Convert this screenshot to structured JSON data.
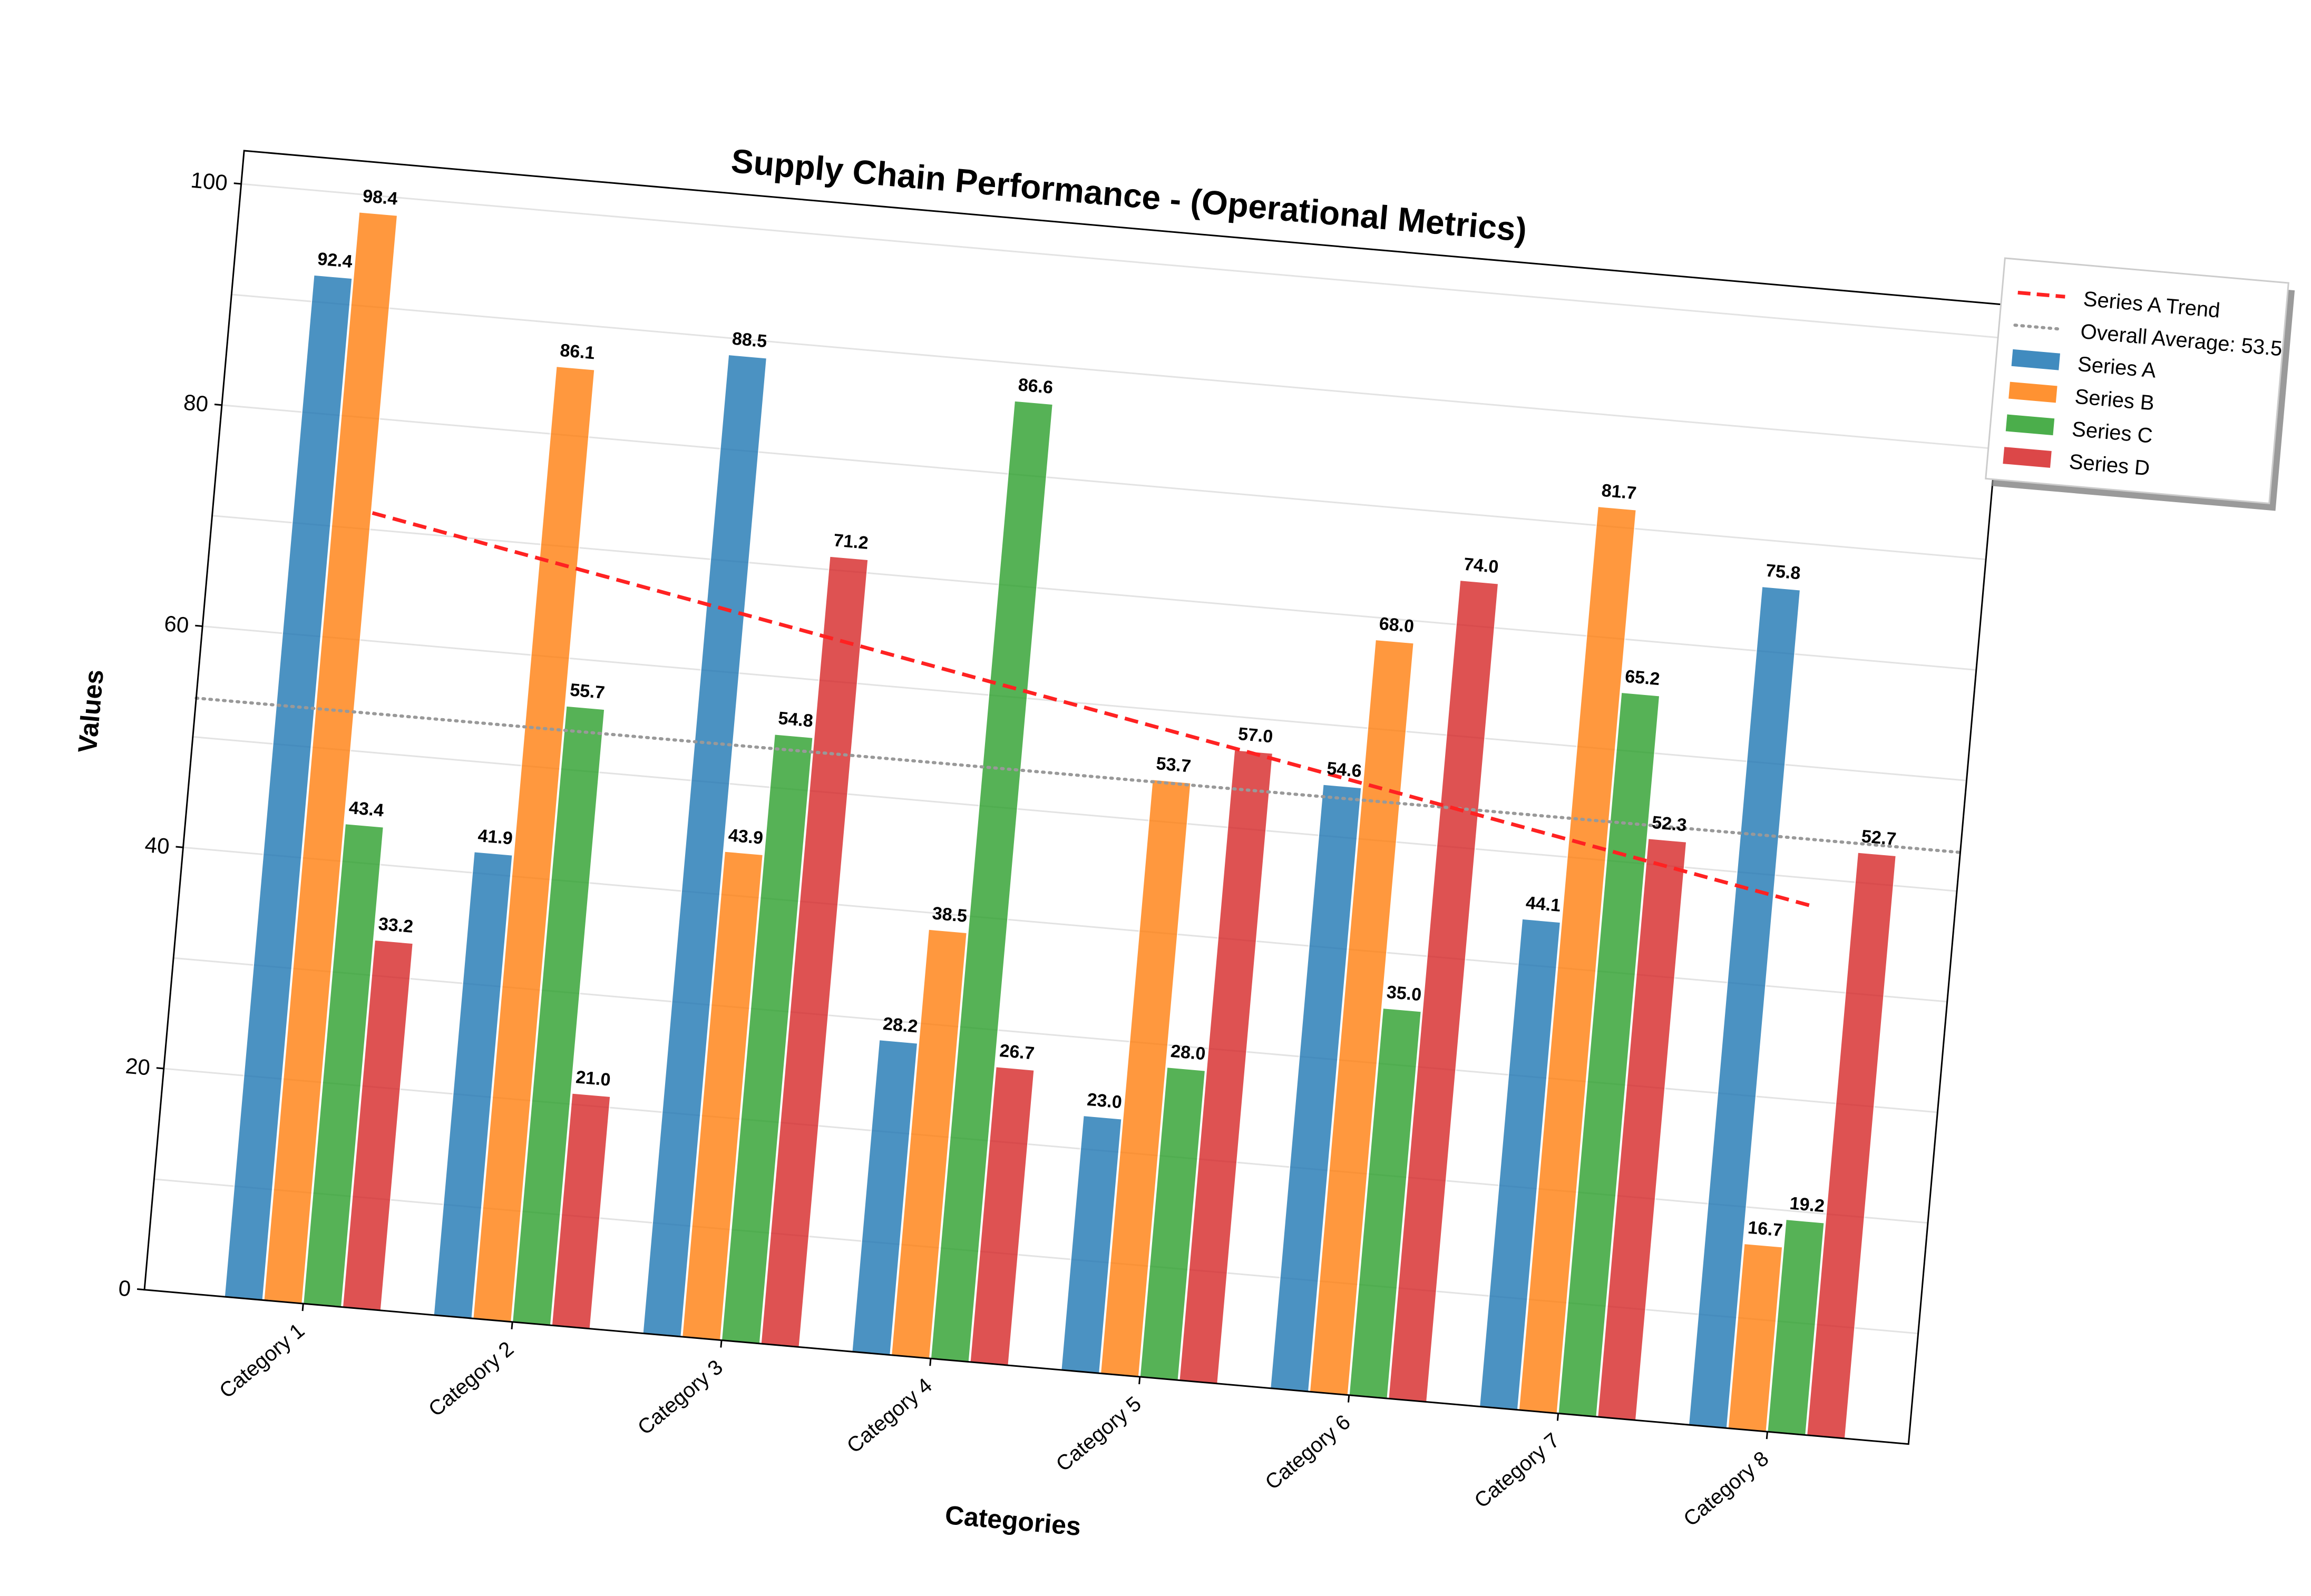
{
  "chart_data": {
    "type": "bar",
    "title": "Supply Chain Performance - (Operational Metrics)",
    "xlabel": "Categories",
    "ylabel": "Values",
    "ylim": [
      0,
      103
    ],
    "yticks": [
      0,
      20,
      40,
      60,
      80,
      100
    ],
    "grid": true,
    "legend_position": "outside-right",
    "categories": [
      "Category 1",
      "Category 2",
      "Category 3",
      "Category 4",
      "Category 5",
      "Category 6",
      "Category 7",
      "Category 8"
    ],
    "series": [
      {
        "name": "Series A",
        "color": "#1f77b4",
        "values": [
          92.4,
          41.9,
          88.5,
          28.2,
          23.0,
          54.6,
          44.1,
          75.8
        ]
      },
      {
        "name": "Series B",
        "color": "#ff7f0e",
        "values": [
          98.4,
          86.1,
          43.9,
          38.5,
          53.7,
          68.0,
          81.7,
          16.7
        ]
      },
      {
        "name": "Series C",
        "color": "#2ca02c",
        "values": [
          43.4,
          55.7,
          54.8,
          86.6,
          28.0,
          35.0,
          65.2,
          19.2
        ]
      },
      {
        "name": "Series D",
        "color": "#d62728",
        "values": [
          33.2,
          21.0,
          71.2,
          26.7,
          57.0,
          74.0,
          52.3,
          52.7
        ]
      }
    ],
    "trend_line": {
      "name": "Series A Trend",
      "color": "#ff2222",
      "start_value": 71.5,
      "end_value": 47.5
    },
    "average_line": {
      "name": "Overall Average: 53.5",
      "value": 53.5,
      "color": "#999999"
    },
    "legend_items": [
      "Series A Trend",
      "Overall Average: 53.5",
      "Series A",
      "Series B",
      "Series C",
      "Series D"
    ]
  }
}
